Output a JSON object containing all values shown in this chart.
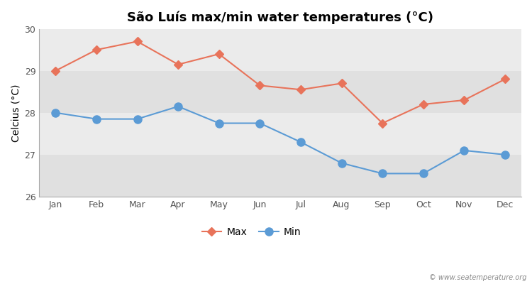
{
  "title": "São Luís max/min water temperatures (°C)",
  "ylabel": "Celcius (°C)",
  "months": [
    "Jan",
    "Feb",
    "Mar",
    "Apr",
    "May",
    "Jun",
    "Jul",
    "Aug",
    "Sep",
    "Oct",
    "Nov",
    "Dec"
  ],
  "max_temps": [
    29.0,
    29.5,
    29.7,
    29.15,
    29.4,
    28.65,
    28.55,
    28.7,
    27.75,
    28.2,
    28.3,
    28.8
  ],
  "min_temps": [
    28.0,
    27.85,
    27.85,
    28.15,
    27.75,
    27.75,
    27.3,
    26.8,
    26.55,
    26.55,
    27.1,
    27.0
  ],
  "max_color": "#e8735a",
  "min_color": "#5b9bd5",
  "figure_bg_color": "#ffffff",
  "band_light": "#ebebeb",
  "band_dark": "#e0e0e0",
  "ylim": [
    26,
    30
  ],
  "yticks": [
    26,
    27,
    28,
    29,
    30
  ],
  "watermark": "© www.seatemperature.org",
  "legend_max": "Max",
  "legend_min": "Min",
  "title_fontsize": 13,
  "axis_label_fontsize": 10,
  "tick_fontsize": 9,
  "marker_style_max": "D",
  "marker_style_min": "o",
  "marker_size_max": 6,
  "marker_size_min": 8
}
